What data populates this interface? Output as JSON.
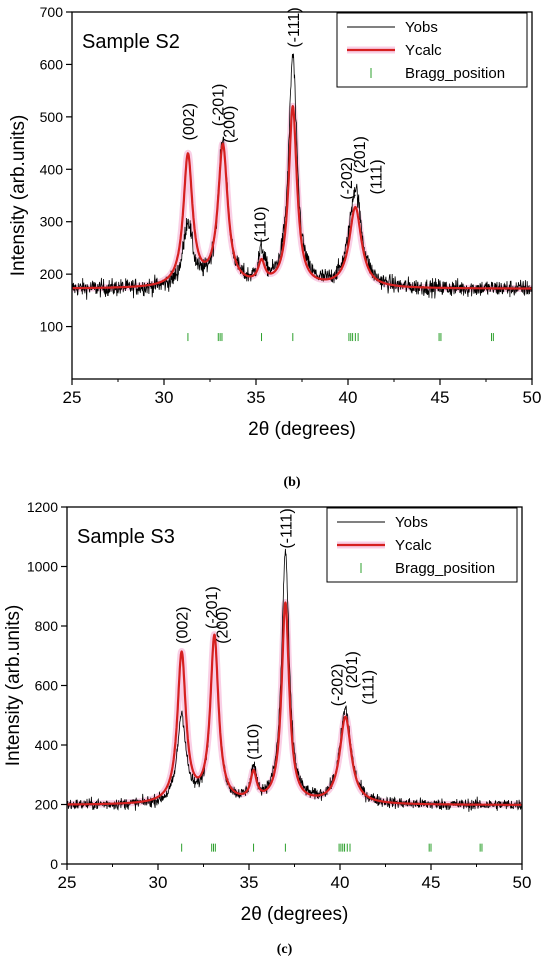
{
  "chart_data": [
    {
      "type": "line",
      "panel_label": "(b)",
      "annotation": "Sample S2",
      "xlabel": "2θ (degrees)",
      "ylabel": "Intensity (arb.units)",
      "xlim": [
        25,
        50
      ],
      "ylim": [
        0,
        700
      ],
      "xticks": [
        25,
        30,
        35,
        40,
        45,
        50
      ],
      "yticks": [
        100,
        200,
        300,
        400,
        500,
        600,
        700
      ],
      "legend_position": "top-right",
      "legend": [
        {
          "name": "Yobs",
          "color": "#000000",
          "kind": "line"
        },
        {
          "name": "Ycalc",
          "color": "#d62020",
          "kind": "line"
        },
        {
          "name": "Bragg_position",
          "color": "#2ca02c",
          "kind": "tick"
        }
      ],
      "baseline": 172,
      "noise": 12,
      "peaks": [
        {
          "x": 31.3,
          "calc": 422,
          "obs": 295,
          "w": 0.3
        },
        {
          "x": 33.2,
          "calc": 440,
          "obs": 450,
          "w": 0.32
        },
        {
          "x": 35.3,
          "calc": 212,
          "obs": 232,
          "w": 0.22
        },
        {
          "x": 37.0,
          "calc": 515,
          "obs": 612,
          "w": 0.27
        },
        {
          "x": 40.4,
          "calc": 325,
          "obs": 362,
          "w": 0.4
        }
      ],
      "bragg_positions": [
        31.3,
        32.95,
        33.05,
        33.15,
        35.3,
        37.0,
        40.05,
        40.15,
        40.25,
        40.4,
        40.55,
        44.95,
        45.05,
        47.8,
        47.9
      ],
      "bragg_y": 80,
      "peak_labels": [
        {
          "text": "(002)",
          "x": 31.3,
          "y": 455
        },
        {
          "text": "(-201)",
          "x": 32.9,
          "y": 482
        },
        {
          "text": "(200)",
          "x": 33.5,
          "y": 450
        },
        {
          "text": "(110)",
          "x": 35.2,
          "y": 260
        },
        {
          "text": "(-111)",
          "x": 37.0,
          "y": 632
        },
        {
          "text": "(-202)",
          "x": 39.9,
          "y": 342
        },
        {
          "text": "(201)",
          "x": 40.6,
          "y": 392
        },
        {
          "text": "(111)",
          "x": 41.5,
          "y": 352
        }
      ]
    },
    {
      "type": "line",
      "panel_label": "(c)",
      "annotation": "Sample S3",
      "xlabel": "2θ (degrees)",
      "ylabel": "Intensity (arb.units)",
      "xlim": [
        25,
        50
      ],
      "ylim": [
        0,
        1200
      ],
      "xticks": [
        25,
        30,
        35,
        40,
        45,
        50
      ],
      "yticks": [
        0,
        200,
        400,
        600,
        800,
        1000,
        1200
      ],
      "legend_position": "top-right",
      "legend": [
        {
          "name": "Yobs",
          "color": "#000000",
          "kind": "line"
        },
        {
          "name": "Ycalc",
          "color": "#d62020",
          "kind": "line"
        },
        {
          "name": "Bragg_position",
          "color": "#2ca02c",
          "kind": "tick"
        }
      ],
      "baseline": 198,
      "noise": 14,
      "peaks": [
        {
          "x": 31.3,
          "calc": 700,
          "obs": 495,
          "w": 0.28
        },
        {
          "x": 33.1,
          "calc": 755,
          "obs": 760,
          "w": 0.27
        },
        {
          "x": 35.25,
          "calc": 290,
          "obs": 302,
          "w": 0.2
        },
        {
          "x": 37.0,
          "calc": 870,
          "obs": 1040,
          "w": 0.25
        },
        {
          "x": 40.3,
          "calc": 490,
          "obs": 515,
          "w": 0.38
        }
      ],
      "bragg_positions": [
        31.3,
        32.95,
        33.05,
        33.15,
        35.25,
        37.0,
        39.95,
        40.05,
        40.15,
        40.25,
        40.4,
        40.55,
        44.9,
        45.0,
        47.7,
        47.8
      ],
      "bragg_y": 55,
      "peak_labels": [
        {
          "text": "(002)",
          "x": 31.3,
          "y": 740
        },
        {
          "text": "(-201)",
          "x": 32.9,
          "y": 790
        },
        {
          "text": "(200)",
          "x": 33.5,
          "y": 740
        },
        {
          "text": "(110)",
          "x": 35.2,
          "y": 350
        },
        {
          "text": "(-111)",
          "x": 37.0,
          "y": 1060
        },
        {
          "text": "(-202)",
          "x": 39.8,
          "y": 530
        },
        {
          "text": "(201)",
          "x": 40.6,
          "y": 590
        },
        {
          "text": "(111)",
          "x": 41.5,
          "y": 535
        }
      ]
    }
  ]
}
